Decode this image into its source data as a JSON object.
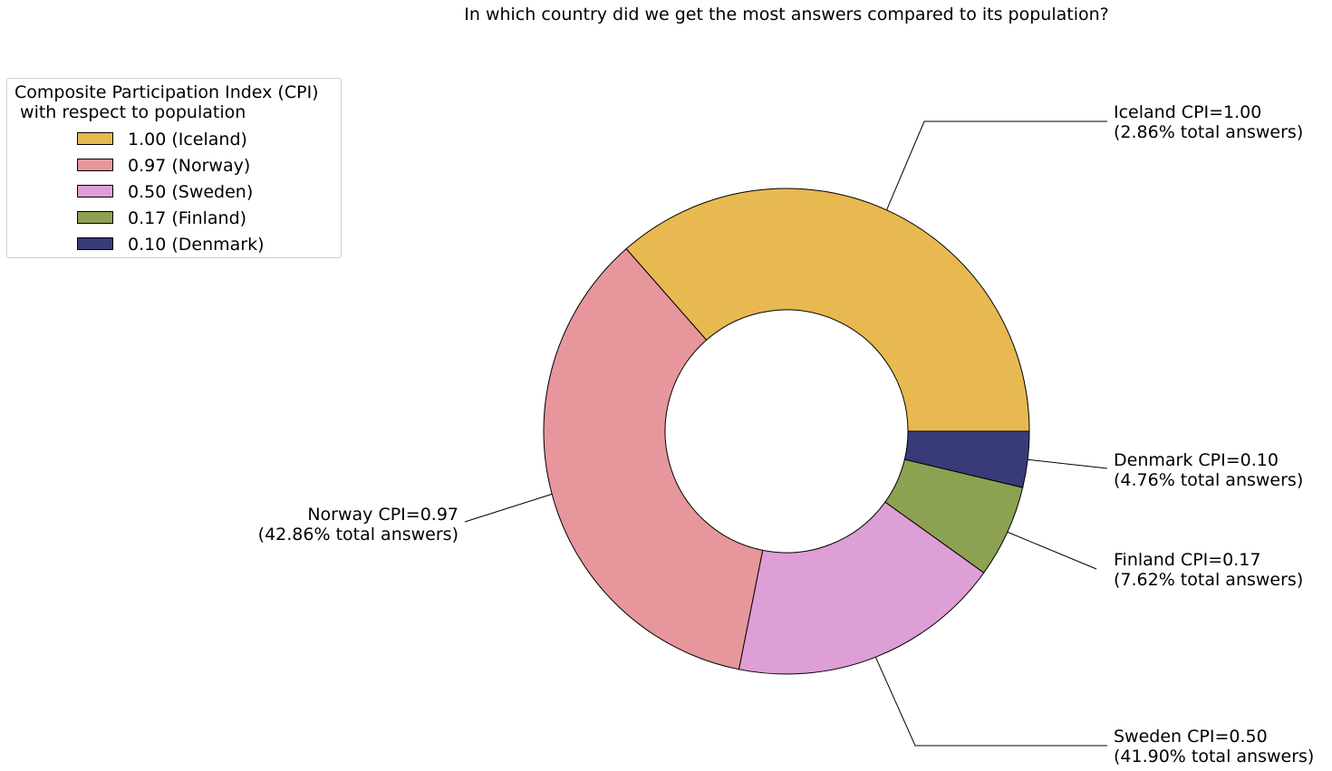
{
  "chart_data": {
    "type": "pie",
    "variant": "donut",
    "title": "In which country did we get the most answers compared to its population?",
    "legend": {
      "title": "Composite Participation Index (CPI)\n with respect to population",
      "placement": "top-left",
      "entries": [
        {
          "label": "1.00 (Iceland)",
          "color": "#e7b950"
        },
        {
          "label": "0.97 (Norway)",
          "color": "#e7969c"
        },
        {
          "label": "0.50 (Sweden)",
          "color": "#de9ed6"
        },
        {
          "label": "0.17 (Finland)",
          "color": "#8ca252"
        },
        {
          "label": "0.10 (Denmark)",
          "color": "#393b79"
        }
      ]
    },
    "slices": [
      {
        "country": "Iceland",
        "cpi": 1.0,
        "value": 2.86,
        "label_line1": "Iceland CPI=1.00",
        "label_line2": "(2.86% total answers)",
        "color": "#e7b950"
      },
      {
        "country": "Norway",
        "cpi": 0.97,
        "value": 42.86,
        "label_line1": "Norway CPI=0.97",
        "label_line2": "(42.86% total answers)",
        "color": "#e7969c"
      },
      {
        "country": "Sweden",
        "cpi": 0.5,
        "value": 41.9,
        "label_line1": "Sweden CPI=0.50",
        "label_line2": "(41.90% total answers)",
        "color": "#de9ed6"
      },
      {
        "country": "Finland",
        "cpi": 0.17,
        "value": 7.62,
        "label_line1": "Finland CPI=0.17",
        "label_line2": "(7.62% total answers)",
        "color": "#8ca252"
      },
      {
        "country": "Denmark",
        "cpi": 0.1,
        "value": 4.76,
        "label_line1": "Denmark CPI=0.10",
        "label_line2": "(4.76% total answers)",
        "color": "#393b79"
      }
    ],
    "visual_share_order": [
      {
        "country": "Iceland",
        "share": 37.2
      },
      {
        "country": "Norway",
        "share": 36.1
      },
      {
        "country": "Sweden",
        "share": 18.6
      },
      {
        "country": "Finland",
        "share": 6.3
      },
      {
        "country": "Denmark",
        "share": 3.8
      }
    ]
  }
}
